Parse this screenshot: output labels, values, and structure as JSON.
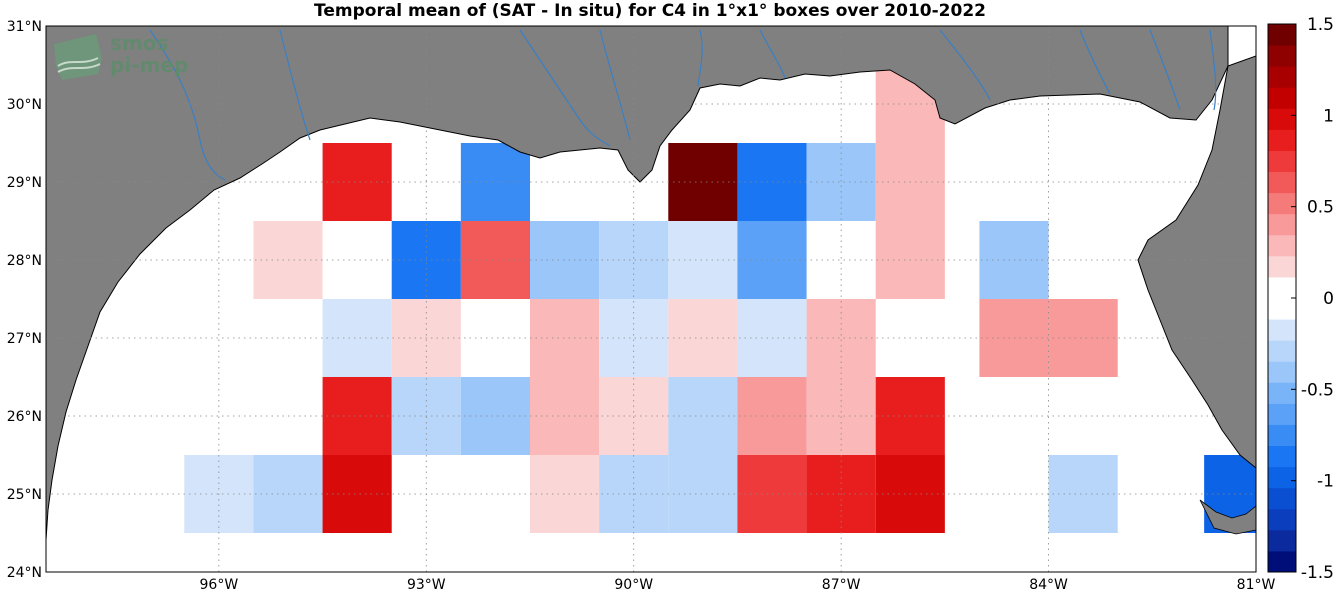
{
  "title": "Temporal mean of (SAT - In situ) for C4 in 1°x1° boxes over 2010-2022",
  "logo": {
    "line1": "smos",
    "line2": "pi-mep"
  },
  "axes": {
    "lon_range": [
      -98.5,
      -81
    ],
    "lat_range": [
      24,
      31
    ],
    "x_ticks": [
      {
        "value": -96,
        "label": "96°W"
      },
      {
        "value": -93,
        "label": "93°W"
      },
      {
        "value": -90,
        "label": "90°W"
      },
      {
        "value": -87,
        "label": "87°W"
      },
      {
        "value": -84,
        "label": "84°W"
      },
      {
        "value": -81,
        "label": "81°W"
      }
    ],
    "y_ticks": [
      {
        "value": 24,
        "label": "24°N"
      },
      {
        "value": 25,
        "label": "25°N"
      },
      {
        "value": 26,
        "label": "26°N"
      },
      {
        "value": 27,
        "label": "27°N"
      },
      {
        "value": 28,
        "label": "28°N"
      },
      {
        "value": 29,
        "label": "29°N"
      },
      {
        "value": 30,
        "label": "30°N"
      },
      {
        "value": 31,
        "label": "31°N"
      }
    ],
    "grid": "dotted"
  },
  "colors": {
    "land": "#808080",
    "ocean": "#ffffff",
    "river": "#3a7fc4"
  },
  "colorbar": {
    "range": [
      -1.5,
      1.5
    ],
    "ticks": [
      {
        "value": 1.5,
        "label": "1.5"
      },
      {
        "value": 1,
        "label": "1"
      },
      {
        "value": 0.5,
        "label": "0.5"
      },
      {
        "value": 0,
        "label": "0"
      },
      {
        "value": -0.5,
        "label": "-0.5"
      },
      {
        "value": -1,
        "label": "-1"
      },
      {
        "value": -1.5,
        "label": "-1.5"
      }
    ],
    "colors": [
      "#000e7a",
      "#0a2a9e",
      "#0b3ebd",
      "#0a4fd2",
      "#0d63e6",
      "#1a76f2",
      "#3a8cf5",
      "#5aa1f7",
      "#7ab4f8",
      "#9ac6f9",
      "#b8d6fa",
      "#d4e5fb",
      "#ffffff",
      "#ffffff",
      "#fbd6d6",
      "#fab8b8",
      "#f89a9a",
      "#f57a7a",
      "#f25a5a",
      "#ee3a3a",
      "#e81e1e",
      "#d90a0a",
      "#c20000",
      "#a80000",
      "#8f0000",
      "#700000"
    ]
  },
  "chart_data": {
    "type": "heatmap",
    "title": "Temporal mean of (SAT - In situ) for C4 in 1°x1° boxes over 2010-2022",
    "cell_size_deg": 1,
    "cells": [
      {
        "lon": -94.0,
        "lat": 29,
        "value": 0.85
      },
      {
        "lon": -92.0,
        "lat": 29,
        "value": -0.7
      },
      {
        "lon": -89.0,
        "lat": 29,
        "value": 1.4
      },
      {
        "lon": -88.0,
        "lat": 29,
        "value": -0.9
      },
      {
        "lon": -87.0,
        "lat": 29,
        "value": -0.4
      },
      {
        "lon": -86.0,
        "lat": 29,
        "value": 0.3
      },
      {
        "lon": -86.0,
        "lat": 30,
        "value": 0.3
      },
      {
        "lon": -95.0,
        "lat": 28,
        "value": 0.15
      },
      {
        "lon": -93.0,
        "lat": 28,
        "value": -0.9
      },
      {
        "lon": -92.0,
        "lat": 28,
        "value": 0.6
      },
      {
        "lon": -91.0,
        "lat": 28,
        "value": -0.4
      },
      {
        "lon": -90.0,
        "lat": 28,
        "value": -0.3
      },
      {
        "lon": -89.0,
        "lat": 28,
        "value": -0.15
      },
      {
        "lon": -88.0,
        "lat": 28,
        "value": -0.6
      },
      {
        "lon": -86.0,
        "lat": 28,
        "value": 0.3
      },
      {
        "lon": -84.5,
        "lat": 28,
        "value": -0.4
      },
      {
        "lon": -94.0,
        "lat": 27,
        "value": -0.15
      },
      {
        "lon": -93.0,
        "lat": 27,
        "value": 0.2
      },
      {
        "lon": -91.0,
        "lat": 27,
        "value": 0.3
      },
      {
        "lon": -90.0,
        "lat": 27,
        "value": -0.15
      },
      {
        "lon": -89.0,
        "lat": 27,
        "value": 0.2
      },
      {
        "lon": -88.0,
        "lat": 27,
        "value": -0.15
      },
      {
        "lon": -87.0,
        "lat": 27,
        "value": 0.3
      },
      {
        "lon": -84.5,
        "lat": 27,
        "value": 0.45
      },
      {
        "lon": -83.5,
        "lat": 27,
        "value": 0.45
      },
      {
        "lon": -94.0,
        "lat": 26,
        "value": 0.85
      },
      {
        "lon": -93.0,
        "lat": 26,
        "value": -0.3
      },
      {
        "lon": -92.0,
        "lat": 26,
        "value": -0.4
      },
      {
        "lon": -91.0,
        "lat": 26,
        "value": 0.3
      },
      {
        "lon": -90.0,
        "lat": 26,
        "value": 0.2
      },
      {
        "lon": -89.0,
        "lat": 26,
        "value": -0.3
      },
      {
        "lon": -88.0,
        "lat": 26,
        "value": 0.45
      },
      {
        "lon": -87.0,
        "lat": 26,
        "value": 0.3
      },
      {
        "lon": -86.0,
        "lat": 26,
        "value": 0.85
      },
      {
        "lon": -96.0,
        "lat": 25,
        "value": -0.15
      },
      {
        "lon": -95.0,
        "lat": 25,
        "value": -0.3
      },
      {
        "lon": -94.0,
        "lat": 25,
        "value": 0.95
      },
      {
        "lon": -91.0,
        "lat": 25,
        "value": 0.2
      },
      {
        "lon": -90.0,
        "lat": 25,
        "value": -0.3
      },
      {
        "lon": -89.0,
        "lat": 25,
        "value": -0.3
      },
      {
        "lon": -88.0,
        "lat": 25,
        "value": 0.7
      },
      {
        "lon": -87.0,
        "lat": 25,
        "value": 0.9
      },
      {
        "lon": -86.0,
        "lat": 25,
        "value": 0.95
      },
      {
        "lon": -83.5,
        "lat": 25,
        "value": -0.3
      },
      {
        "lon": -81.25,
        "lat": 25,
        "value": -1.0
      }
    ]
  }
}
